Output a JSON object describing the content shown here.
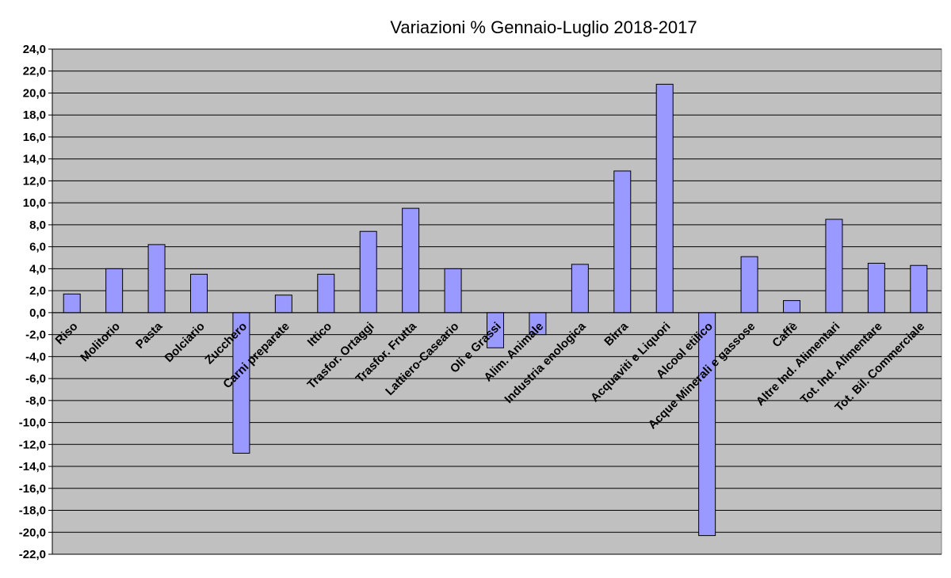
{
  "chart_data": {
    "type": "bar",
    "title": "Variazioni % Gennaio-Luglio 2018-2017",
    "xlabel": "",
    "ylabel": "",
    "ylim": [
      -22,
      24
    ],
    "ytick_step": 2,
    "ytick_labels": [
      "24,0",
      "22,0",
      "20,0",
      "18,0",
      "16,0",
      "14,0",
      "12,0",
      "10,0",
      "8,0",
      "6,0",
      "4,0",
      "2,0",
      "0,0",
      "-2,0",
      "-4,0",
      "-6,0",
      "-8,0",
      "-10,0",
      "-12,0",
      "-14,0",
      "-16,0",
      "-18,0",
      "-20,0",
      "-22,0"
    ],
    "grid": true,
    "legend": "none",
    "colors": {
      "plot_background": "#c0c0c0",
      "bar_fill": "#9999ff",
      "bar_stroke": "#000000",
      "gridline": "#000000"
    },
    "categories": [
      "Riso",
      "Molitorio",
      "Pasta",
      "Dolciario",
      "Zucchero",
      "Carni preparate",
      "Ittico",
      "Trasfor. Ortaggi",
      "Trasfor. Frutta",
      "Lattiero-Caseario",
      "Oli e Grassi",
      "Alim. Animale",
      "Industria enologica",
      "Birra",
      "Acquaviti e Liquori",
      "Alcool etilico",
      "Acque Minerali e gassose",
      "Caffè",
      "Altre Ind. Alimentari",
      "Tot. Ind. Alimentare",
      "Tot. Bil. Commerciale"
    ],
    "values": [
      1.7,
      4.0,
      6.2,
      3.5,
      -12.8,
      1.6,
      3.5,
      7.4,
      9.5,
      4.0,
      -3.2,
      -2.0,
      4.4,
      12.9,
      20.8,
      -20.3,
      5.1,
      1.1,
      8.5,
      4.5,
      4.3
    ]
  }
}
